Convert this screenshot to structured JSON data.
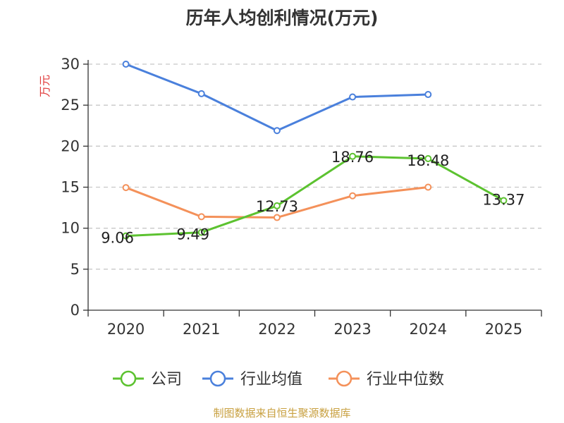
{
  "chart_data": {
    "type": "line",
    "title": "历年人均创利情况(万元)",
    "ylabel": "万元",
    "xlabel": "",
    "categories": [
      "2020",
      "2021",
      "2022",
      "2023",
      "2024",
      "2025"
    ],
    "ylim": [
      0,
      30
    ],
    "yticks": [
      0,
      5,
      10,
      15,
      20,
      25,
      30
    ],
    "grid": true,
    "legend_position": "bottom",
    "series": [
      {
        "name": "公司",
        "color": "#5cc230",
        "values": [
          9.06,
          9.49,
          12.73,
          18.76,
          18.48,
          13.37
        ],
        "labels": [
          "9.06",
          "9.49",
          "12.73",
          "18.76",
          "18.48",
          "13.37"
        ]
      },
      {
        "name": "行业均值",
        "color": "#4a80dc",
        "values": [
          30.0,
          26.4,
          21.9,
          26.0,
          26.3,
          null
        ]
      },
      {
        "name": "行业中位数",
        "color": "#f4915a",
        "values": [
          14.95,
          11.4,
          11.3,
          13.95,
          15.0,
          null
        ]
      }
    ],
    "ylabel_color": "#e03c3c"
  },
  "source": {
    "text": "制图数据来自恒生聚源数据库",
    "color": "#c8a040"
  }
}
